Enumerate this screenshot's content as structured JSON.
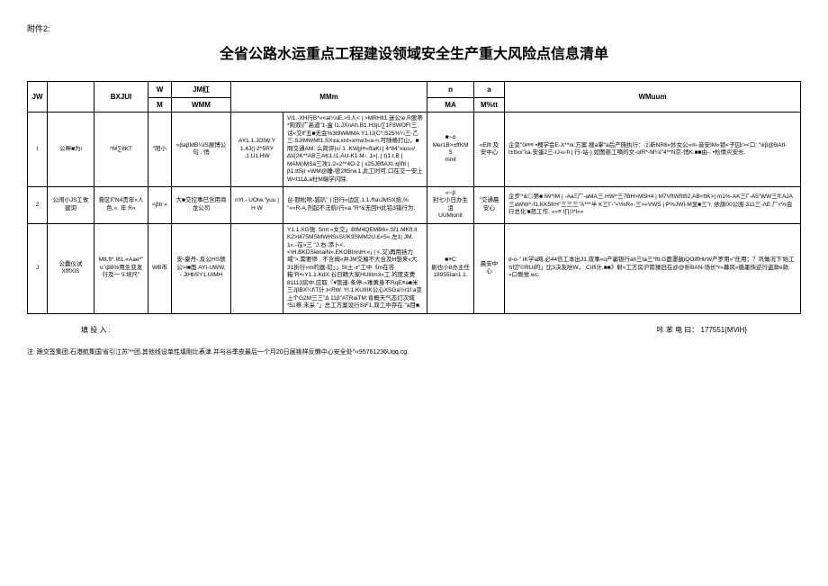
{
  "annex": "附件2:",
  "title": "全省公路水运重点工程建设领域安全生产重大风险点信息清单",
  "columns": {
    "c1t": "JW",
    "c2t": "",
    "c3t": "BXJUI",
    "c4t": "W",
    "c4b": "M",
    "c5t": "JM红",
    "c5b": "WMM",
    "c6t": "MMm",
    "c7t": "n",
    "c7b": "MA",
    "c8t": "a",
    "c8b": "M%tt",
    "c9t": "WMuum"
  },
  "rows": [
    {
      "jw": "I",
      "name": "公畔■为i",
      "bx": "^M∑8KT",
      "wm": "\"阳小",
      "jmr": "«βaβMB¼IS展博公句 . 悄",
      "wmm": "AY1.1.JOIW.Y 1.4J(|  2^5RY .1.U1.HW",
      "mmm": "Vl1.-XH行B*«<al¼\\iE.>5人< | >MRHll1.迷公\\e.R股蒂*狗双l广高道\"1-盒 l1.JXnAh.B1.H3jU∑1F8WOFI三.话«交lf'五■无会%3t9WMMA Y1.IJ(C*.S25%¼三-乙三.SJIMWMf1.SX±a.xnt«xmw3«a-n.可随楂打山，■問交通AM. 么简评|«/ 1 .KWjjI≡«fIaKi | 4*84\"xius«/∆\\t{2K**AB三AK1.I1.AU-K1.M-. 1«|. | t)1.t.B  |  MAM(iMSa三攻1.2»2**4O-2 | x25JBflAXl.±βftt | β1.ttSjr «WM@睡-密2ft5rw.1.此工时可.口在交一安上W<t11∆.a杜M端学闪除.",
      "n1": "■~α",
      "n2": "Mer1B>±ffKMS",
      "n3": "mnit",
      "a": "«Elft 及安中心",
      "wmu": "企变\"0i≡≡ •槐学会E-X**ni:方案.搜a掌\"a后产施执行：②新NR8«妙女公«m-音安IM«锁<子囚r><口: \"iiiβ@BAtI-t±ttxx\"λa.安蛋2三-IJ-u-fi | 行-站-) 如图慈工嘀的文-otR*-M¼I\"4**N京-悄K.■■由-. •检情炎安长."
    },
    {
      "jw": "2",
      "name": "公闹小JS工攸建询",
      "bx": "膏区Iΐ\"N4贵年«人色.«. 年 R«",
      "wm": "<βtr «",
      "jmr": "大■交控事已含用商龙公司",
      "wmm": "nYl.- UOlw.\"yuu | H W",
      "mmm": "台-颐松啥-狐叭\" | 旧行«边区.1.1.⁄fIa\\JMSX拾,% \"««R-A.剂起不法航r行«a \"R*&无回H此铅3错行为.",
      "n1": "«~β",
      "n2": "封七小日办生沮",
      "n3": "UUMionit",
      "a": "\"交通晨安心",
      "wmu": "企步'*&◎第■ lW*IM | -AaΞ厂-aMA三.HW^三7BH>M5H4 | M7VftWfItfI2,AB<ftK>| m1%-AK三Γ-A5\"WW三ff.AJA三aWW^-f1.KK5frH\"三三三\"A***半 K三Γ-\"<\\%R«-三>«VWS | P%JWI-M显■三\"r. 依旗00公围 311三-ΛE:厂<%会行总化'■怒工作. »»≡ l∏∣l*l«»"
    },
    {
      "jw": "J",
      "name": "公蠢仪试XfffXIS",
      "bx": "Mtt.ft*.I81.«Aae*\"u`\\βB%用生变发行及一 \\ΐ.培尺\"",
      "wm": "WB市",
      "jmr": "安-豪丹-.反公HS德公>l■面 AYt-UWW,  -  JlHbSY1.UIMH",
      "wmm": "",
      "mmm": "Y1.1.XG強:   Smt «女交」BfM4QEMB6».Sf1.MKft.ll K2>l475MSMWHSsSUK9SMM2U.£«5«.左1| JM.                                            1«.-在»三 \"J.右-添卜<. <\\H.BKDSienaiN».EKOBInnlH.«¡ | <.又)再用括力域\">.需要慘 . 不含阀«井JM交擁不大合及H想来«大31折行«m的器-缸」」St土-±\"工中《m在答箱\"R•«Y1.1.KdX:谷日精大家HUlitm3«工.的度支费81113房中.应取『¥管速-条停-»难黄身不RqE≡a■米三JβBX¼f\\T计.t<RW. Yl.1.KUIIIK公心XSGa½r1f.a变上个G2M三三\"∆ 11β\"ATRaiTM:肯概天气态灯次域*51祭.未采 \"」总工方案设行SIF1.双工中存在   \"a目■.",
      "n1": "■≡C",
      "n2": "剔也小8办主任",
      "n3": "18955Ian1.1.",
      "a": "晨安中心",
      "wmu": "d-o-\" IK学a网.必44信工本出J1.双事«o产骗银行ah三ta三*ftt.G面罩敌iQOiffHtrW产罗用»\"任用；？巩做况下'始工π切\"©RUi的」比3决友咝W， CIIfi计,■■》射«工方房沪箭操旧在@@折BAN-场长*r«幕风«循墨怏逆行盗款e款. «口慨觉.wc."
    }
  ],
  "footer": {
    "left": "填 投 入 :",
    "right_label": "咔 苯 电 曰：",
    "right_value": "177551{MViH}"
  },
  "note": "注:   跟交签集团.石港航集国'省引江苏'**团.其他线设单性填剛比表津.并与谷季皮最后一个月20日届祧样反懒中心安全处^«95761236Uqq.cg."
}
